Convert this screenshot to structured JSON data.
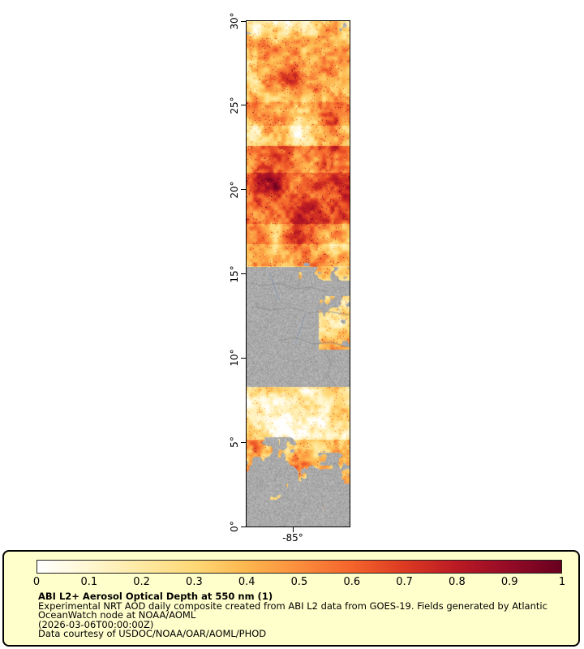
{
  "map": {
    "lat_ticks": [
      "30°",
      "25°",
      "20°",
      "15°",
      "10°",
      "5°",
      "0°"
    ],
    "lon_tick": "-85°",
    "nodata_color": "#a9a9a9",
    "border_color": "#000000"
  },
  "colorbar": {
    "ticks": [
      "0",
      "0.1",
      "0.2",
      "0.3",
      "0.4",
      "0.5",
      "0.6",
      "0.7",
      "0.8",
      "0.9",
      "1"
    ],
    "stops": [
      [
        0.0,
        "#ffffff"
      ],
      [
        0.05,
        "#fffbe8"
      ],
      [
        0.1,
        "#fff7d0"
      ],
      [
        0.2,
        "#fee9a2"
      ],
      [
        0.3,
        "#fed876"
      ],
      [
        0.4,
        "#fdb64e"
      ],
      [
        0.5,
        "#fb8d3d"
      ],
      [
        0.6,
        "#f4642b"
      ],
      [
        0.7,
        "#dc3a22"
      ],
      [
        0.8,
        "#bb1a24"
      ],
      [
        0.9,
        "#950b26"
      ],
      [
        1.0,
        "#67001f"
      ]
    ]
  },
  "legend": {
    "panel_bg": "#ffffcc",
    "title": "ABI L2+ Aerosol Optical Depth at 550 nm (1)",
    "line1": "Experimental NRT AOD daily composite created from ABI L2 data from GOES-19. Fields generated by Atlantic",
    "line2": "OceanWatch node at NOAA/AOML",
    "line3": "(2026-03-06T00:00:00Z)",
    "line4": "Data courtesy of USDOC/NOAA/OAR/AOML/PHOD"
  },
  "chart_data": {
    "type": "heatmap",
    "title": "ABI L2+ Aerosol Optical Depth at 550 nm (1)",
    "value_range": [
      0,
      1
    ],
    "colorbar_tick_values": [
      0,
      0.1,
      0.2,
      0.3,
      0.4,
      0.5,
      0.6,
      0.7,
      0.8,
      0.9,
      1
    ],
    "lat_axis_deg": [
      30,
      25,
      20,
      15,
      10,
      5,
      0
    ],
    "lon_tick_deg": -85,
    "legend_position": "bottom",
    "nodata_rendering": "gray"
  }
}
